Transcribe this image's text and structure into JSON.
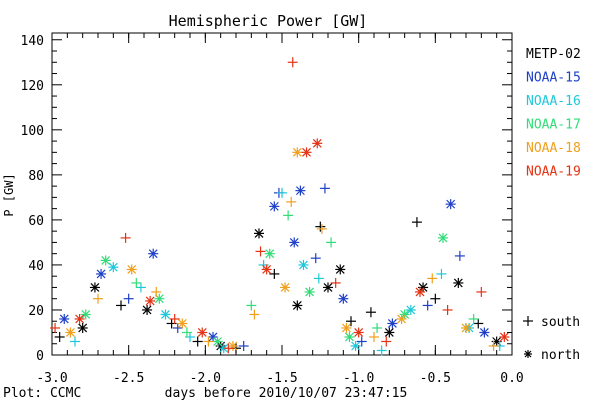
{
  "chart_data": {
    "type": "scatter",
    "title": "Hemispheric Power [GW]",
    "ylabel": "P [GW]",
    "xlabel": "days before 2010/10/07 23:47:15",
    "footer": "Plot: CCMC",
    "xlim": [
      -3.0,
      0.0
    ],
    "ylim": [
      0,
      143
    ],
    "xticks": [
      -3.0,
      -2.5,
      -2.0,
      -1.5,
      -1.0,
      -0.5,
      0.0
    ],
    "xtick_labels": [
      "-3.0",
      "-2.5",
      "-2.0",
      "-1.5",
      "-1.0",
      "-0.5",
      "0.0"
    ],
    "yticks": [
      0,
      20,
      40,
      60,
      80,
      100,
      120,
      140
    ],
    "ytick_labels": [
      "0",
      "20",
      "40",
      "60",
      "80",
      "100",
      "120",
      "140"
    ],
    "grid": false,
    "legend_position": "right",
    "markers": {
      "south": "+",
      "north": "*"
    },
    "marker_legend": [
      {
        "symbol": "+",
        "label": "south"
      },
      {
        "symbol": "*",
        "label": "north"
      }
    ],
    "series": [
      {
        "name": "METP-02",
        "color": "#000000",
        "points": [
          {
            "x": -2.95,
            "y": 8,
            "h": "south"
          },
          {
            "x": -2.8,
            "y": 12,
            "h": "north"
          },
          {
            "x": -2.72,
            "y": 30,
            "h": "north"
          },
          {
            "x": -2.55,
            "y": 22,
            "h": "south"
          },
          {
            "x": -2.38,
            "y": 20,
            "h": "north"
          },
          {
            "x": -2.22,
            "y": 14,
            "h": "south"
          },
          {
            "x": -2.05,
            "y": 6,
            "h": "south"
          },
          {
            "x": -1.9,
            "y": 4,
            "h": "north"
          },
          {
            "x": -1.8,
            "y": 3,
            "h": "south"
          },
          {
            "x": -1.65,
            "y": 54,
            "h": "north"
          },
          {
            "x": -1.55,
            "y": 36,
            "h": "south"
          },
          {
            "x": -1.4,
            "y": 22,
            "h": "north"
          },
          {
            "x": -1.25,
            "y": 57,
            "h": "south"
          },
          {
            "x": -1.2,
            "y": 30,
            "h": "north"
          },
          {
            "x": -1.12,
            "y": 38,
            "h": "north"
          },
          {
            "x": -1.05,
            "y": 15,
            "h": "south"
          },
          {
            "x": -0.92,
            "y": 19,
            "h": "south"
          },
          {
            "x": -0.8,
            "y": 10,
            "h": "north"
          },
          {
            "x": -0.62,
            "y": 59,
            "h": "south"
          },
          {
            "x": -0.58,
            "y": 30,
            "h": "north"
          },
          {
            "x": -0.5,
            "y": 25,
            "h": "south"
          },
          {
            "x": -0.35,
            "y": 32,
            "h": "north"
          },
          {
            "x": -0.22,
            "y": 14,
            "h": "south"
          },
          {
            "x": -0.1,
            "y": 6,
            "h": "north"
          }
        ]
      },
      {
        "name": "NOAA-15",
        "color": "#1e40c8",
        "points": [
          {
            "x": -2.92,
            "y": 16,
            "h": "north"
          },
          {
            "x": -2.68,
            "y": 36,
            "h": "north"
          },
          {
            "x": -2.5,
            "y": 25,
            "h": "south"
          },
          {
            "x": -2.34,
            "y": 45,
            "h": "north"
          },
          {
            "x": -2.18,
            "y": 12,
            "h": "south"
          },
          {
            "x": -1.95,
            "y": 8,
            "h": "north"
          },
          {
            "x": -1.75,
            "y": 4,
            "h": "south"
          },
          {
            "x": -1.55,
            "y": 66,
            "h": "north"
          },
          {
            "x": -1.52,
            "y": 72,
            "h": "south"
          },
          {
            "x": -1.42,
            "y": 50,
            "h": "north"
          },
          {
            "x": -1.38,
            "y": 73,
            "h": "north"
          },
          {
            "x": -1.28,
            "y": 43,
            "h": "south"
          },
          {
            "x": -1.22,
            "y": 74,
            "h": "south"
          },
          {
            "x": -1.1,
            "y": 25,
            "h": "north"
          },
          {
            "x": -0.98,
            "y": 6,
            "h": "south"
          },
          {
            "x": -0.78,
            "y": 14,
            "h": "north"
          },
          {
            "x": -0.55,
            "y": 22,
            "h": "south"
          },
          {
            "x": -0.4,
            "y": 67,
            "h": "north"
          },
          {
            "x": -0.34,
            "y": 44,
            "h": "south"
          },
          {
            "x": -0.18,
            "y": 10,
            "h": "north"
          }
        ]
      },
      {
        "name": "NOAA-16",
        "color": "#1ec8dc",
        "points": [
          {
            "x": -2.85,
            "y": 6,
            "h": "south"
          },
          {
            "x": -2.6,
            "y": 39,
            "h": "north"
          },
          {
            "x": -2.42,
            "y": 30,
            "h": "south"
          },
          {
            "x": -2.26,
            "y": 18,
            "h": "north"
          },
          {
            "x": -2.1,
            "y": 8,
            "h": "south"
          },
          {
            "x": -1.88,
            "y": 3,
            "h": "north"
          },
          {
            "x": -1.62,
            "y": 40,
            "h": "south"
          },
          {
            "x": -1.5,
            "y": 72,
            "h": "south"
          },
          {
            "x": -1.36,
            "y": 40,
            "h": "north"
          },
          {
            "x": -1.26,
            "y": 34,
            "h": "south"
          },
          {
            "x": -1.02,
            "y": 4,
            "h": "north"
          },
          {
            "x": -0.85,
            "y": 2,
            "h": "south"
          },
          {
            "x": -0.66,
            "y": 20,
            "h": "north"
          },
          {
            "x": -0.46,
            "y": 36,
            "h": "south"
          },
          {
            "x": -0.28,
            "y": 12,
            "h": "north"
          },
          {
            "x": -0.08,
            "y": 4,
            "h": "south"
          }
        ]
      },
      {
        "name": "NOAA-17",
        "color": "#32dc78",
        "points": [
          {
            "x": -2.78,
            "y": 18,
            "h": "north"
          },
          {
            "x": -2.65,
            "y": 42,
            "h": "north"
          },
          {
            "x": -2.45,
            "y": 32,
            "h": "south"
          },
          {
            "x": -2.3,
            "y": 25,
            "h": "north"
          },
          {
            "x": -2.12,
            "y": 10,
            "h": "south"
          },
          {
            "x": -1.92,
            "y": 6,
            "h": "north"
          },
          {
            "x": -1.7,
            "y": 22,
            "h": "south"
          },
          {
            "x": -1.58,
            "y": 45,
            "h": "north"
          },
          {
            "x": -1.46,
            "y": 62,
            "h": "south"
          },
          {
            "x": -1.32,
            "y": 28,
            "h": "north"
          },
          {
            "x": -1.18,
            "y": 50,
            "h": "south"
          },
          {
            "x": -1.06,
            "y": 8,
            "h": "north"
          },
          {
            "x": -0.88,
            "y": 12,
            "h": "south"
          },
          {
            "x": -0.7,
            "y": 18,
            "h": "north"
          },
          {
            "x": -0.45,
            "y": 52,
            "h": "north"
          },
          {
            "x": -0.25,
            "y": 16,
            "h": "south"
          }
        ]
      },
      {
        "name": "NOAA-18",
        "color": "#f0a01e",
        "points": [
          {
            "x": -2.88,
            "y": 10,
            "h": "north"
          },
          {
            "x": -2.7,
            "y": 25,
            "h": "south"
          },
          {
            "x": -2.48,
            "y": 38,
            "h": "north"
          },
          {
            "x": -2.32,
            "y": 28,
            "h": "south"
          },
          {
            "x": -2.15,
            "y": 14,
            "h": "north"
          },
          {
            "x": -1.98,
            "y": 6,
            "h": "south"
          },
          {
            "x": -1.82,
            "y": 4,
            "h": "north"
          },
          {
            "x": -1.68,
            "y": 18,
            "h": "south"
          },
          {
            "x": -1.48,
            "y": 30,
            "h": "north"
          },
          {
            "x": -1.44,
            "y": 68,
            "h": "south"
          },
          {
            "x": -1.4,
            "y": 90,
            "h": "north"
          },
          {
            "x": -1.24,
            "y": 56,
            "h": "south"
          },
          {
            "x": -1.08,
            "y": 12,
            "h": "north"
          },
          {
            "x": -0.9,
            "y": 8,
            "h": "south"
          },
          {
            "x": -0.72,
            "y": 16,
            "h": "north"
          },
          {
            "x": -0.52,
            "y": 34,
            "h": "south"
          },
          {
            "x": -0.3,
            "y": 12,
            "h": "north"
          },
          {
            "x": -0.12,
            "y": 4,
            "h": "south"
          }
        ]
      },
      {
        "name": "NOAA-19",
        "color": "#e63214",
        "points": [
          {
            "x": -2.98,
            "y": 12,
            "h": "south"
          },
          {
            "x": -2.82,
            "y": 16,
            "h": "north"
          },
          {
            "x": -2.52,
            "y": 52,
            "h": "south"
          },
          {
            "x": -2.36,
            "y": 24,
            "h": "north"
          },
          {
            "x": -2.2,
            "y": 16,
            "h": "south"
          },
          {
            "x": -2.02,
            "y": 10,
            "h": "north"
          },
          {
            "x": -1.85,
            "y": 3,
            "h": "south"
          },
          {
            "x": -1.64,
            "y": 46,
            "h": "south"
          },
          {
            "x": -1.6,
            "y": 38,
            "h": "north"
          },
          {
            "x": -1.43,
            "y": 130,
            "h": "south"
          },
          {
            "x": -1.34,
            "y": 90,
            "h": "north"
          },
          {
            "x": -1.27,
            "y": 94,
            "h": "north"
          },
          {
            "x": -1.15,
            "y": 32,
            "h": "south"
          },
          {
            "x": -1.0,
            "y": 10,
            "h": "north"
          },
          {
            "x": -0.82,
            "y": 6,
            "h": "south"
          },
          {
            "x": -0.6,
            "y": 28,
            "h": "north"
          },
          {
            "x": -0.42,
            "y": 20,
            "h": "south"
          },
          {
            "x": -0.2,
            "y": 28,
            "h": "south"
          },
          {
            "x": -0.05,
            "y": 8,
            "h": "north"
          }
        ]
      }
    ]
  }
}
